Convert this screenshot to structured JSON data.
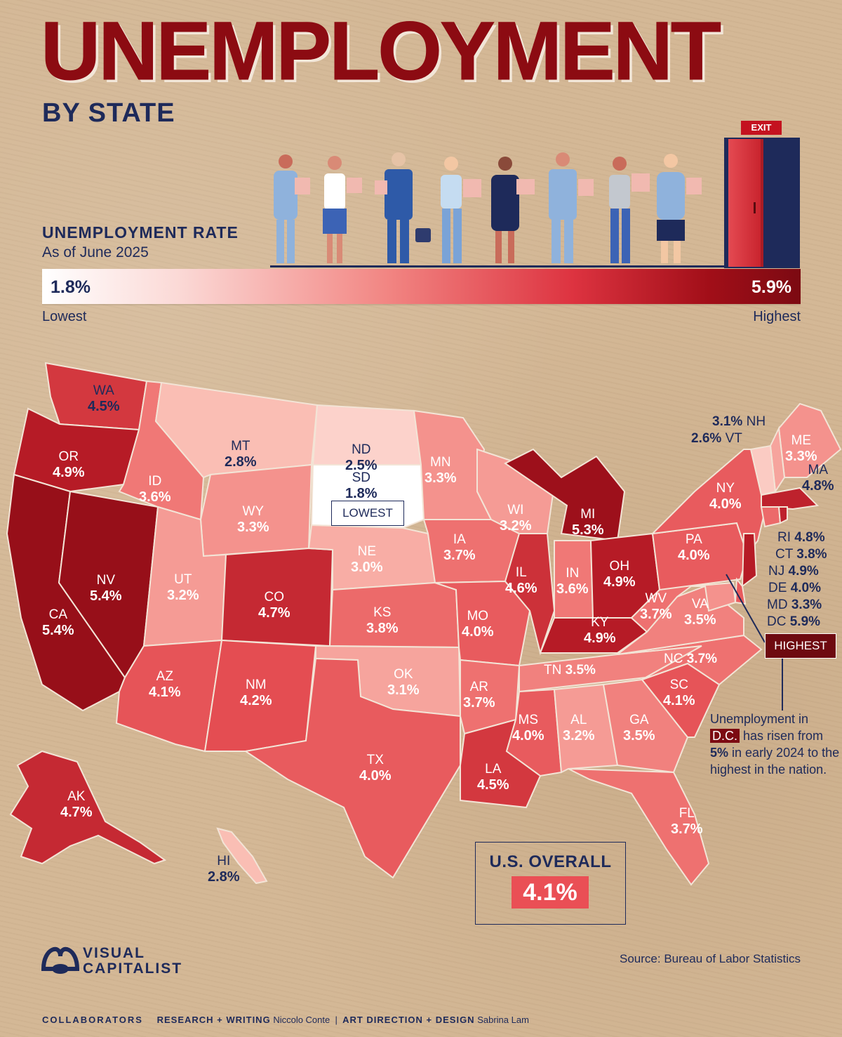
{
  "header": {
    "title": "UNEMPLOYMENT",
    "subtitle": "BY STATE"
  },
  "legend": {
    "title": "UNEMPLOYMENT RATE",
    "date": "As of June 2025",
    "min_value": "1.8%",
    "max_value": "5.9%",
    "min_word": "Lowest",
    "max_word": "Highest",
    "exit_sign": "EXIT"
  },
  "colors": {
    "lowest": "#ffffff",
    "low": "#fbd9d6",
    "mid": "#f28784",
    "high": "#dd3340",
    "highest": "#7c0a12",
    "title": "#8c0b12",
    "text": "#1e2a5a"
  },
  "map": {
    "states": [
      {
        "code": "WA",
        "value": "4.5%",
        "rate": 4.5
      },
      {
        "code": "OR",
        "value": "4.9%",
        "rate": 4.9
      },
      {
        "code": "CA",
        "value": "5.4%",
        "rate": 5.4
      },
      {
        "code": "NV",
        "value": "5.4%",
        "rate": 5.4
      },
      {
        "code": "ID",
        "value": "3.6%",
        "rate": 3.6
      },
      {
        "code": "MT",
        "value": "2.8%",
        "rate": 2.8
      },
      {
        "code": "WY",
        "value": "3.3%",
        "rate": 3.3
      },
      {
        "code": "UT",
        "value": "3.2%",
        "rate": 3.2
      },
      {
        "code": "CO",
        "value": "4.7%",
        "rate": 4.7
      },
      {
        "code": "AZ",
        "value": "4.1%",
        "rate": 4.1
      },
      {
        "code": "NM",
        "value": "4.2%",
        "rate": 4.2
      },
      {
        "code": "ND",
        "value": "2.5%",
        "rate": 2.5
      },
      {
        "code": "SD",
        "value": "1.8%",
        "rate": 1.8
      },
      {
        "code": "NE",
        "value": "3.0%",
        "rate": 3.0
      },
      {
        "code": "KS",
        "value": "3.8%",
        "rate": 3.8
      },
      {
        "code": "OK",
        "value": "3.1%",
        "rate": 3.1
      },
      {
        "code": "TX",
        "value": "4.0%",
        "rate": 4.0
      },
      {
        "code": "MN",
        "value": "3.3%",
        "rate": 3.3
      },
      {
        "code": "IA",
        "value": "3.7%",
        "rate": 3.7
      },
      {
        "code": "MO",
        "value": "4.0%",
        "rate": 4.0
      },
      {
        "code": "AR",
        "value": "3.7%",
        "rate": 3.7
      },
      {
        "code": "LA",
        "value": "4.5%",
        "rate": 4.5
      },
      {
        "code": "WI",
        "value": "3.2%",
        "rate": 3.2
      },
      {
        "code": "IL",
        "value": "4.6%",
        "rate": 4.6
      },
      {
        "code": "MI",
        "value": "5.3%",
        "rate": 5.3
      },
      {
        "code": "IN",
        "value": "3.6%",
        "rate": 3.6
      },
      {
        "code": "OH",
        "value": "4.9%",
        "rate": 4.9
      },
      {
        "code": "KY",
        "value": "4.9%",
        "rate": 4.9
      },
      {
        "code": "TN",
        "value": "3.5%",
        "rate": 3.5
      },
      {
        "code": "MS",
        "value": "4.0%",
        "rate": 4.0
      },
      {
        "code": "AL",
        "value": "3.2%",
        "rate": 3.2
      },
      {
        "code": "GA",
        "value": "3.5%",
        "rate": 3.5
      },
      {
        "code": "FL",
        "value": "3.7%",
        "rate": 3.7
      },
      {
        "code": "SC",
        "value": "4.1%",
        "rate": 4.1
      },
      {
        "code": "NC",
        "value": "3.7%",
        "rate": 3.7
      },
      {
        "code": "VA",
        "value": "3.5%",
        "rate": 3.5
      },
      {
        "code": "WV",
        "value": "3.7%",
        "rate": 3.7
      },
      {
        "code": "PA",
        "value": "4.0%",
        "rate": 4.0
      },
      {
        "code": "NY",
        "value": "4.0%",
        "rate": 4.0
      },
      {
        "code": "ME",
        "value": "3.3%",
        "rate": 3.3
      },
      {
        "code": "MA",
        "value": "4.8%",
        "rate": 4.8
      },
      {
        "code": "AK",
        "value": "4.7%",
        "rate": 4.7
      },
      {
        "code": "HI",
        "value": "2.8%",
        "rate": 2.8
      }
    ],
    "small_states": [
      {
        "code": "NH",
        "value": "3.1%",
        "rate": 3.1
      },
      {
        "code": "VT",
        "value": "2.6%",
        "rate": 2.6
      },
      {
        "code": "RI",
        "value": "4.8%",
        "rate": 4.8
      },
      {
        "code": "CT",
        "value": "3.8%",
        "rate": 3.8
      },
      {
        "code": "NJ",
        "value": "4.9%",
        "rate": 4.9
      },
      {
        "code": "DE",
        "value": "4.0%",
        "rate": 4.0
      },
      {
        "code": "MD",
        "value": "3.3%",
        "rate": 3.3
      },
      {
        "code": "DC",
        "value": "5.9%",
        "rate": 5.9
      }
    ],
    "lowest_badge": "LOWEST",
    "highest_badge": "HIGHEST"
  },
  "dc_note": {
    "part1": "Unemployment in",
    "dc": "D.C.",
    "part2": "has risen from",
    "from_value": "5%",
    "part3": "in early 2024 to the highest in the nation."
  },
  "overall": {
    "label": "U.S. OVERALL",
    "value": "4.1%"
  },
  "footer": {
    "source": "Source: Bureau of Labor Statistics",
    "logo_line1": "VISUAL",
    "logo_line2": "CAPITALIST",
    "collaborators": "COLLABORATORS",
    "research_key": "RESEARCH + WRITING",
    "research_name": "Niccolo Conte",
    "design_key": "ART DIRECTION + DESIGN",
    "design_name": "Sabrina Lam"
  }
}
